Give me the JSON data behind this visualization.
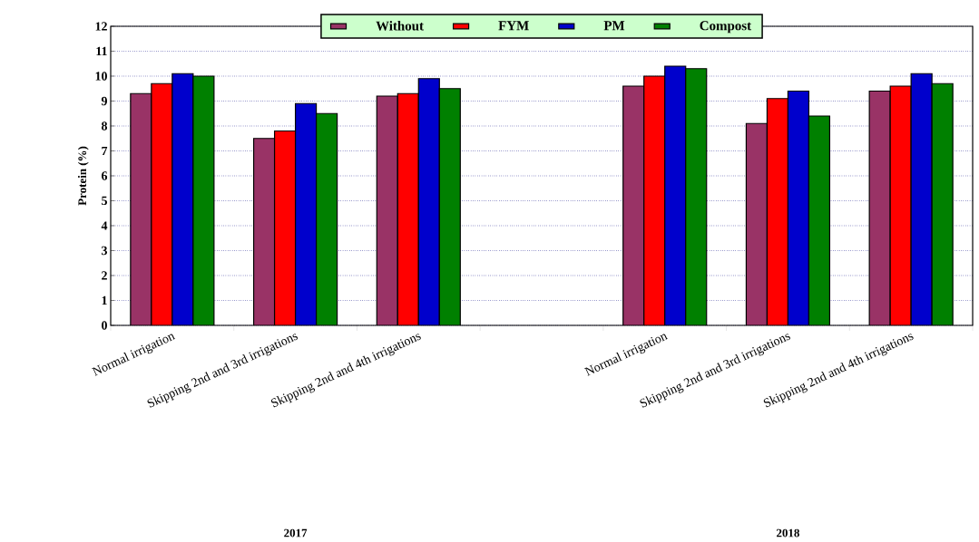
{
  "chart_data": {
    "type": "bar",
    "ylabel": "Protein (%)",
    "categories": [
      "Normal irrigation",
      "Skipping 2nd and 3rd irrigations",
      "Skipping 2nd and 4th irrigations",
      null,
      "Normal irrigation",
      "Skipping 2nd and 3rd irrigations",
      "Skipping 2nd and 4th irrigations"
    ],
    "series": [
      {
        "name": "Without",
        "color": "#993366",
        "values": [
          9.3,
          7.5,
          9.2,
          null,
          9.6,
          8.1,
          9.4
        ]
      },
      {
        "name": "FYM",
        "color": "#ff0000",
        "values": [
          9.7,
          7.8,
          9.3,
          null,
          10.0,
          9.1,
          9.6
        ]
      },
      {
        "name": "PM",
        "color": "#0000cc",
        "values": [
          10.1,
          8.9,
          9.9,
          null,
          10.4,
          9.4,
          10.1
        ]
      },
      {
        "name": "Compost",
        "color": "#008000",
        "values": [
          10.0,
          8.5,
          9.5,
          null,
          10.3,
          8.4,
          9.7
        ]
      }
    ],
    "ylim": [
      0,
      12
    ],
    "yticks": [
      0,
      1,
      2,
      3,
      4,
      5,
      6,
      7,
      8,
      9,
      10,
      11,
      12
    ],
    "grid": "y",
    "legend": "top",
    "annotations": [
      "2017",
      "2018"
    ]
  }
}
